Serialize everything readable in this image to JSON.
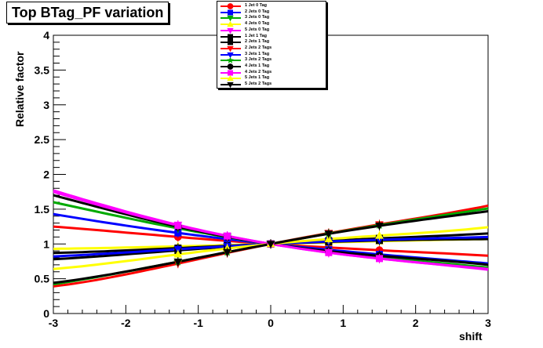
{
  "chart_data": {
    "type": "line",
    "title": "Top BTag_PF variation",
    "xlabel": "shift",
    "ylabel": "Relative factor",
    "xlim": [
      -3,
      3
    ],
    "ylim": [
      0,
      4
    ],
    "x_ticks": [
      "-3",
      "-2",
      "-1",
      "0",
      "1",
      "2",
      "3"
    ],
    "y_ticks": [
      "0",
      "0.5",
      "1",
      "1.5",
      "2",
      "2.5",
      "3",
      "3.5",
      "4"
    ],
    "marker_x": [
      -1.28,
      -0.6,
      0,
      0.8,
      1.5
    ],
    "grid": false,
    "legend_position": "top-center",
    "series": [
      {
        "name": "1 Jet  0 Tag",
        "color": "#ff0000",
        "marker": "circle",
        "x": [
          -3,
          -1.5,
          0,
          1.5,
          3
        ],
        "values": [
          1.25,
          1.12,
          1.0,
          0.91,
          0.83
        ]
      },
      {
        "name": "2 Jets 0 Tag",
        "color": "#0000ff",
        "marker": "square",
        "x": [
          -3,
          -1.5,
          0,
          1.5,
          3
        ],
        "values": [
          1.43,
          1.19,
          1.0,
          0.85,
          0.72
        ]
      },
      {
        "name": "3 Jets 0 Tag",
        "color": "#00aa00",
        "marker": "triangle-down",
        "x": [
          -3,
          -1.5,
          0,
          1.5,
          3
        ],
        "values": [
          1.6,
          1.27,
          1.0,
          0.81,
          0.66
        ]
      },
      {
        "name": "4 Jets 0 Tag",
        "color": "#ffff00",
        "marker": "triangle-up",
        "x": [
          -3,
          -1.5,
          0,
          1.5,
          3
        ],
        "values": [
          0.93,
          0.96,
          1.0,
          1.04,
          1.07
        ]
      },
      {
        "name": "5 Jets 0 Tag",
        "color": "#ff00ff",
        "marker": "triangle-down",
        "x": [
          -3,
          -1.5,
          0,
          1.5,
          3
        ],
        "values": [
          1.77,
          1.33,
          1.0,
          0.79,
          0.63
        ]
      },
      {
        "name": "1 Jet  1 Tag",
        "color": "#000000",
        "marker": "square",
        "x": [
          -3,
          -1.5,
          0,
          1.5,
          3
        ],
        "values": [
          0.87,
          0.93,
          1.0,
          1.05,
          1.07
        ]
      },
      {
        "name": "2 Jets 1 Tag",
        "color": "#000000",
        "marker": "square",
        "x": [
          -3,
          -1.5,
          0,
          1.5,
          3
        ],
        "values": [
          0.78,
          0.89,
          1.0,
          1.08,
          1.15
        ]
      },
      {
        "name": "2 Jets 2 Tags",
        "color": "#ff0000",
        "marker": "triangle-down",
        "x": [
          -3,
          -1.5,
          0,
          1.5,
          3
        ],
        "values": [
          0.39,
          0.67,
          1.0,
          1.28,
          1.55
        ]
      },
      {
        "name": "3 Jets 1 Tag",
        "color": "#0000ff",
        "marker": "triangle-down",
        "x": [
          -3,
          -1.5,
          0,
          1.5,
          3
        ],
        "values": [
          0.82,
          0.91,
          1.0,
          1.06,
          1.1
        ]
      },
      {
        "name": "3 Jets 2 Tags",
        "color": "#00aa00",
        "marker": "star",
        "x": [
          -3,
          -1.5,
          0,
          1.5,
          3
        ],
        "values": [
          0.42,
          0.7,
          1.0,
          1.27,
          1.51
        ]
      },
      {
        "name": "4 Jets 1 Tag",
        "color": "#000000",
        "marker": "circle",
        "x": [
          -3,
          -1.5,
          0,
          1.5,
          3
        ],
        "values": [
          1.7,
          1.3,
          1.0,
          0.83,
          0.7
        ]
      },
      {
        "name": "4 Jets 2 Tags",
        "color": "#ff00ff",
        "marker": "square",
        "x": [
          -3,
          -1.5,
          0,
          1.5,
          3
        ],
        "values": [
          1.75,
          1.32,
          1.0,
          0.79,
          0.64
        ]
      },
      {
        "name": "5 Jets 1 Tag",
        "color": "#ffff00",
        "marker": "triangle-up",
        "x": [
          -3,
          -1.5,
          0,
          1.5,
          3
        ],
        "values": [
          0.64,
          0.82,
          1.0,
          1.12,
          1.24
        ]
      },
      {
        "name": "5 Jets 2 Tags",
        "color": "#000000",
        "marker": "triangle-down",
        "x": [
          -3,
          -1.5,
          0,
          1.5,
          3
        ],
        "values": [
          0.44,
          0.7,
          1.0,
          1.26,
          1.47
        ]
      }
    ]
  }
}
